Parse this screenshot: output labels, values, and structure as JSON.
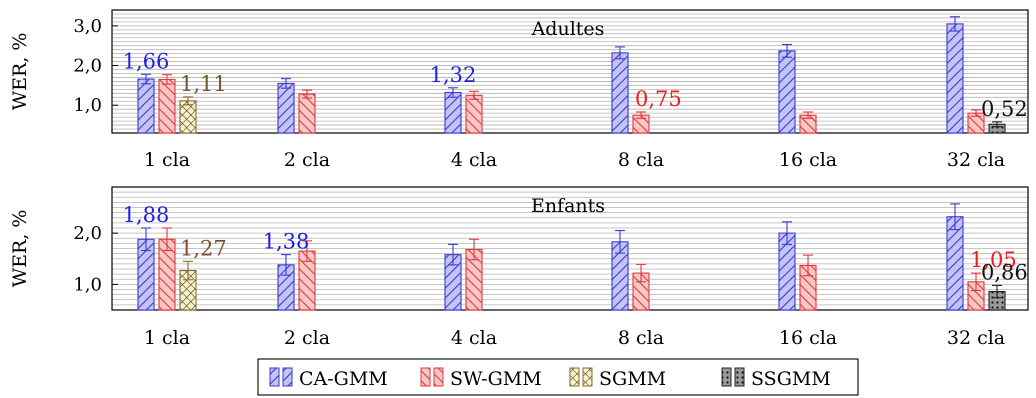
{
  "legend": {
    "entries": [
      "CA-GMM",
      "SW-GMM",
      "SGMM",
      "SSGMM"
    ],
    "placement": "bottom-center"
  },
  "colors": {
    "CA-GMM": "#3a3ad6",
    "SW-GMM": "#e23a3a",
    "SGMM": "#8b6a2e",
    "SSGMM": "#222222",
    "label_CA-GMM": "#1f1fe0",
    "label_SW-GMM": "#ee1c1c",
    "label_SGMM": "#7a5230",
    "label_SSGMM": "#111111"
  },
  "chart_data": [
    {
      "type": "bar",
      "title": "Adultes",
      "ylabel": "WER, %",
      "ylim": [
        0.3,
        3.4
      ],
      "yticks": [
        1.0,
        2.0,
        3.0
      ],
      "ytick_labels": [
        "1,0",
        "2,0",
        "3,0"
      ],
      "grid": "horizontal",
      "categories": [
        "1 cla",
        "2 cla",
        "4 cla",
        "8 cla",
        "16 cla",
        "32 cla"
      ],
      "series": [
        {
          "name": "CA-GMM",
          "values": [
            1.66,
            1.55,
            1.32,
            2.32,
            2.37,
            3.05
          ],
          "errors": [
            0.12,
            0.12,
            0.12,
            0.15,
            0.16,
            0.18
          ]
        },
        {
          "name": "SW-GMM",
          "values": [
            1.65,
            1.28,
            1.25,
            0.75,
            0.75,
            0.8
          ],
          "errors": [
            0.12,
            0.1,
            0.1,
            0.08,
            0.08,
            0.08
          ]
        },
        {
          "name": "SGMM",
          "values": [
            1.11,
            null,
            null,
            null,
            null,
            null
          ],
          "errors": [
            0.1,
            null,
            null,
            null,
            null,
            null
          ]
        },
        {
          "name": "SSGMM",
          "values": [
            null,
            null,
            null,
            null,
            null,
            0.52
          ],
          "errors": [
            null,
            null,
            null,
            null,
            null,
            0.06
          ]
        }
      ],
      "data_labels": [
        {
          "series": "CA-GMM",
          "category": "1 cla",
          "text": "1,66"
        },
        {
          "series": "SGMM",
          "category": "1 cla",
          "text": "1,11"
        },
        {
          "series": "CA-GMM",
          "category": "4 cla",
          "text": "1,32"
        },
        {
          "series": "SW-GMM",
          "category": "8 cla",
          "text": "0,75"
        },
        {
          "series": "SSGMM",
          "category": "32 cla",
          "text": "0,52"
        }
      ]
    },
    {
      "type": "bar",
      "title": "Enfants",
      "ylabel": "WER, %",
      "ylim": [
        0.5,
        2.9
      ],
      "yticks": [
        1.0,
        2.0
      ],
      "ytick_labels": [
        "1,0",
        "2,0"
      ],
      "grid": "horizontal",
      "categories": [
        "1 cla",
        "2 cla",
        "4 cla",
        "8 cla",
        "16 cla",
        "32 cla"
      ],
      "series": [
        {
          "name": "CA-GMM",
          "values": [
            1.88,
            1.38,
            1.58,
            1.83,
            2.0,
            2.32
          ],
          "errors": [
            0.22,
            0.2,
            0.2,
            0.22,
            0.22,
            0.25
          ]
        },
        {
          "name": "SW-GMM",
          "values": [
            1.88,
            1.65,
            1.68,
            1.22,
            1.37,
            1.05
          ],
          "errors": [
            0.22,
            0.2,
            0.2,
            0.17,
            0.2,
            0.17
          ]
        },
        {
          "name": "SGMM",
          "values": [
            1.27,
            null,
            null,
            null,
            null,
            null
          ],
          "errors": [
            0.18,
            null,
            null,
            null,
            null,
            null
          ]
        },
        {
          "name": "SSGMM",
          "values": [
            null,
            null,
            null,
            null,
            null,
            0.86
          ],
          "errors": [
            null,
            null,
            null,
            null,
            null,
            0.12
          ]
        }
      ],
      "data_labels": [
        {
          "series": "CA-GMM",
          "category": "1 cla",
          "text": "1,88"
        },
        {
          "series": "SGMM",
          "category": "1 cla",
          "text": "1,27"
        },
        {
          "series": "CA-GMM",
          "category": "2 cla",
          "text": "1,38"
        },
        {
          "series": "SW-GMM",
          "category": "32 cla",
          "text": "1,05"
        },
        {
          "series": "SSGMM",
          "category": "32 cla",
          "text": "0,86"
        }
      ]
    }
  ]
}
